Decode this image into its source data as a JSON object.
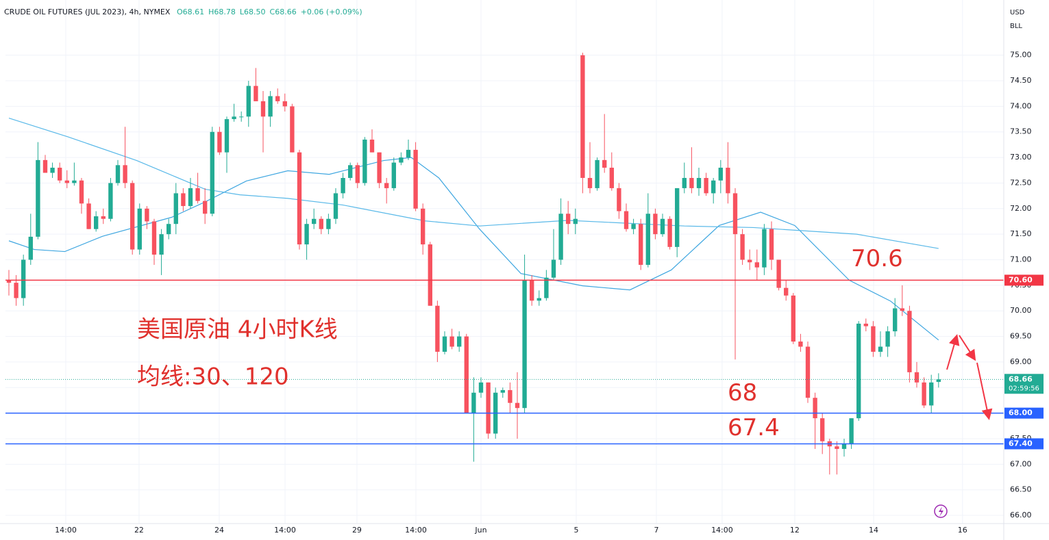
{
  "header": {
    "symbol": "CRUDE OIL FUTURES (JUL 2023), 4h, NYMEX",
    "ohlc": [
      "O68.61",
      "H68.78",
      "L68.50",
      "C68.66",
      "+0.06 (+0.09%)"
    ],
    "currency": "USD",
    "unit": "BLL"
  },
  "chart_data": {
    "type": "candlestick",
    "up_color": "#22ab94",
    "down_color": "#f7525f",
    "candles": [
      [
        70.6,
        70.8,
        70.3,
        70.55
      ],
      [
        70.55,
        70.7,
        70.1,
        70.25
      ],
      [
        70.25,
        71.1,
        70.1,
        71.0
      ],
      [
        71.0,
        71.9,
        70.9,
        71.45
      ],
      [
        71.45,
        73.3,
        71.4,
        72.95
      ],
      [
        72.95,
        73.05,
        72.7,
        72.7
      ],
      [
        72.7,
        72.9,
        72.6,
        72.8
      ],
      [
        72.8,
        72.9,
        72.5,
        72.55
      ],
      [
        72.55,
        72.75,
        72.4,
        72.5
      ],
      [
        72.5,
        72.9,
        72.45,
        72.55
      ],
      [
        72.55,
        72.6,
        71.9,
        72.1
      ],
      [
        72.1,
        72.2,
        71.6,
        71.6
      ],
      [
        71.6,
        71.95,
        71.55,
        71.85
      ],
      [
        71.85,
        72.0,
        71.7,
        71.8
      ],
      [
        71.8,
        72.6,
        71.75,
        72.5
      ],
      [
        72.5,
        72.95,
        72.45,
        72.85
      ],
      [
        72.85,
        73.6,
        72.4,
        72.5
      ],
      [
        72.5,
        72.55,
        71.1,
        71.2
      ],
      [
        71.2,
        72.1,
        71.1,
        72.0
      ],
      [
        72.0,
        72.05,
        71.6,
        71.75
      ],
      [
        71.75,
        71.8,
        70.9,
        71.1
      ],
      [
        71.1,
        71.6,
        70.7,
        71.5
      ],
      [
        71.5,
        71.8,
        71.4,
        71.7
      ],
      [
        71.7,
        72.5,
        71.5,
        72.3
      ],
      [
        72.3,
        72.4,
        71.95,
        72.05
      ],
      [
        72.05,
        72.6,
        72.0,
        72.4
      ],
      [
        72.4,
        72.7,
        72.1,
        72.15
      ],
      [
        72.15,
        72.4,
        71.7,
        71.9
      ],
      [
        71.9,
        73.6,
        71.85,
        73.5
      ],
      [
        73.5,
        73.6,
        73.05,
        73.1
      ],
      [
        73.1,
        73.8,
        72.7,
        73.75
      ],
      [
        73.75,
        74.05,
        73.7,
        73.8
      ],
      [
        73.8,
        73.9,
        73.7,
        73.8
      ],
      [
        73.8,
        74.5,
        73.6,
        74.4
      ],
      [
        74.4,
        74.75,
        74.1,
        74.1
      ],
      [
        74.1,
        74.3,
        73.1,
        73.8
      ],
      [
        73.8,
        74.3,
        73.6,
        74.2
      ],
      [
        74.2,
        74.35,
        74.05,
        74.1
      ],
      [
        74.1,
        74.25,
        73.9,
        74.0
      ],
      [
        74.0,
        74.05,
        73.1,
        73.1
      ],
      [
        73.1,
        73.15,
        71.2,
        71.3
      ],
      [
        71.3,
        71.8,
        71.0,
        71.7
      ],
      [
        71.7,
        72.0,
        71.6,
        71.8
      ],
      [
        71.8,
        71.85,
        71.5,
        71.6
      ],
      [
        71.6,
        71.9,
        71.5,
        71.8
      ],
      [
        71.8,
        72.4,
        71.7,
        72.3
      ],
      [
        72.3,
        72.7,
        72.2,
        72.6
      ],
      [
        72.6,
        72.9,
        72.55,
        72.85
      ],
      [
        72.85,
        72.9,
        72.4,
        72.5
      ],
      [
        72.5,
        73.4,
        72.45,
        73.35
      ],
      [
        73.35,
        73.55,
        73.1,
        73.1
      ],
      [
        73.1,
        73.1,
        72.4,
        72.5
      ],
      [
        72.5,
        72.6,
        72.1,
        72.4
      ],
      [
        72.4,
        73.0,
        72.35,
        72.9
      ],
      [
        72.9,
        73.1,
        72.85,
        73.0
      ],
      [
        73.0,
        73.35,
        72.95,
        73.15
      ],
      [
        73.15,
        73.3,
        71.95,
        72.0
      ],
      [
        72.0,
        72.1,
        71.1,
        71.3
      ],
      [
        71.3,
        71.35,
        70.1,
        70.1
      ],
      [
        70.1,
        70.2,
        69.0,
        69.2
      ],
      [
        69.2,
        69.6,
        69.15,
        69.5
      ],
      [
        69.5,
        69.65,
        69.25,
        69.3
      ],
      [
        69.3,
        69.6,
        69.2,
        69.5
      ],
      [
        69.5,
        69.55,
        68.0,
        68.0
      ],
      [
        68.0,
        68.7,
        67.05,
        68.4
      ],
      [
        68.4,
        68.7,
        68.3,
        68.6
      ],
      [
        68.6,
        68.6,
        67.5,
        67.6
      ],
      [
        67.6,
        68.5,
        67.5,
        68.4
      ],
      [
        68.4,
        68.5,
        68.3,
        68.45
      ],
      [
        68.45,
        68.6,
        68.0,
        68.2
      ],
      [
        68.2,
        68.8,
        67.5,
        68.1
      ],
      [
        68.1,
        71.1,
        68.0,
        70.6
      ],
      [
        70.6,
        70.7,
        70.1,
        70.2
      ],
      [
        70.2,
        70.4,
        70.1,
        70.25
      ],
      [
        70.25,
        70.8,
        70.2,
        70.65
      ],
      [
        70.65,
        71.6,
        70.6,
        71.0
      ],
      [
        71.0,
        72.2,
        70.9,
        71.9
      ],
      [
        71.9,
        72.15,
        71.5,
        71.7
      ],
      [
        71.7,
        72.0,
        71.5,
        71.8
      ],
      [
        75.0,
        75.05,
        72.3,
        72.6
      ],
      [
        72.6,
        73.3,
        72.3,
        72.4
      ],
      [
        72.4,
        73.0,
        72.35,
        72.95
      ],
      [
        72.95,
        73.85,
        72.7,
        72.8
      ],
      [
        72.8,
        73.1,
        72.35,
        72.4
      ],
      [
        72.4,
        72.5,
        71.8,
        71.95
      ],
      [
        71.95,
        72.1,
        71.55,
        71.6
      ],
      [
        71.6,
        71.8,
        71.5,
        71.7
      ],
      [
        71.7,
        71.8,
        70.8,
        70.9
      ],
      [
        70.9,
        72.3,
        70.85,
        71.9
      ],
      [
        71.9,
        72.0,
        71.4,
        71.5
      ],
      [
        71.5,
        71.9,
        71.45,
        71.8
      ],
      [
        71.8,
        71.85,
        71.2,
        71.25
      ],
      [
        71.25,
        72.4,
        71.05,
        72.4
      ],
      [
        72.4,
        72.9,
        72.3,
        72.6
      ],
      [
        72.6,
        73.2,
        72.3,
        72.4
      ],
      [
        72.4,
        72.8,
        72.25,
        72.6
      ],
      [
        72.6,
        72.7,
        72.25,
        72.3
      ],
      [
        72.3,
        72.6,
        72.1,
        72.55
      ],
      [
        72.55,
        72.95,
        72.3,
        72.8
      ],
      [
        72.8,
        73.3,
        72.1,
        72.3
      ],
      [
        72.3,
        72.4,
        69.05,
        71.5
      ],
      [
        71.5,
        71.6,
        70.9,
        71.0
      ],
      [
        71.0,
        71.2,
        70.8,
        70.95
      ],
      [
        70.95,
        71.2,
        70.6,
        70.85
      ],
      [
        70.85,
        71.7,
        70.7,
        71.6
      ],
      [
        71.6,
        71.75,
        70.8,
        71.0
      ],
      [
        71.0,
        71.0,
        70.4,
        70.45
      ],
      [
        70.45,
        70.6,
        70.2,
        70.3
      ],
      [
        70.3,
        70.35,
        69.35,
        69.4
      ],
      [
        69.4,
        69.55,
        69.2,
        69.3
      ],
      [
        69.3,
        69.4,
        68.2,
        68.3
      ],
      [
        68.3,
        68.4,
        67.3,
        67.9
      ],
      [
        67.9,
        68.0,
        67.2,
        67.45
      ],
      [
        67.45,
        67.5,
        66.8,
        67.35
      ],
      [
        67.35,
        67.45,
        66.8,
        67.3
      ],
      [
        67.3,
        67.5,
        67.15,
        67.4
      ],
      [
        67.4,
        67.9,
        67.3,
        67.9
      ],
      [
        67.9,
        69.8,
        67.85,
        69.75
      ],
      [
        69.75,
        69.85,
        69.6,
        69.7
      ],
      [
        69.7,
        69.8,
        69.1,
        69.2
      ],
      [
        69.2,
        69.6,
        69.1,
        69.3
      ],
      [
        69.3,
        69.7,
        69.1,
        69.6
      ],
      [
        69.6,
        70.25,
        69.5,
        70.05
      ],
      [
        70.05,
        70.5,
        69.9,
        70.0
      ],
      [
        70.0,
        70.1,
        68.6,
        68.8
      ],
      [
        68.8,
        69.0,
        68.5,
        68.6
      ],
      [
        68.6,
        68.7,
        68.1,
        68.15
      ],
      [
        68.15,
        68.75,
        68.0,
        68.6
      ],
      [
        68.61,
        68.78,
        68.5,
        68.66
      ]
    ],
    "series": [
      {
        "color": "#3ea6e0",
        "x": [
          0,
          3.5,
          7.7,
          12.9,
          22.4,
          27,
          32.7,
          38.4,
          44.1,
          51.6,
          55.4,
          59.2,
          64.8,
          70.5,
          79,
          85.5,
          91.2,
          97.8,
          103.5,
          108.2,
          115.7,
          121.4,
          128
        ],
        "values": [
          71.37,
          71.2,
          71.16,
          71.46,
          71.83,
          72.13,
          72.54,
          72.74,
          72.67,
          72.94,
          73.0,
          72.6,
          71.6,
          70.73,
          70.49,
          70.41,
          70.8,
          71.67,
          71.93,
          71.67,
          70.6,
          70.19,
          69.43
        ]
      },
      {
        "color": "#58b8e8",
        "x": [
          0,
          8.2,
          17.6,
          27,
          31.8,
          38.4,
          46,
          57.3,
          64.8,
          77,
          93,
          102.5,
          116.7,
          128
        ],
        "values": [
          73.77,
          73.4,
          72.94,
          72.38,
          72.27,
          72.2,
          72.07,
          71.76,
          71.66,
          71.77,
          71.66,
          71.63,
          71.5,
          71.22
        ]
      }
    ],
    "xlim": [
      -0.47,
      136.98
    ],
    "xticks": [
      {
        "value": 7.83,
        "label": "14:00"
      },
      {
        "value": 17.92,
        "label": "22"
      },
      {
        "value": 28.96,
        "label": "24"
      },
      {
        "value": 38.02,
        "label": "14:00"
      },
      {
        "value": 47.92,
        "label": "29"
      },
      {
        "value": 56.04,
        "label": "14:00"
      },
      {
        "value": 65.0,
        "label": "Jun"
      },
      {
        "value": 78.11,
        "label": "5"
      },
      {
        "value": 89.15,
        "label": "7"
      },
      {
        "value": 98.2,
        "label": "14:00"
      },
      {
        "value": 108.2,
        "label": "12"
      },
      {
        "value": 119.06,
        "label": "14"
      },
      {
        "value": 131.3,
        "label": "16"
      }
    ],
    "ylim": [
      65.84,
      76.08
    ],
    "yticks": [
      {
        "value": 66,
        "label": "66.00"
      },
      {
        "value": 66.5,
        "label": "66.50"
      },
      {
        "value": 67,
        "label": "67.00"
      },
      {
        "value": 67.5,
        "label": "67.50"
      },
      {
        "value": 68,
        "label": "68.00"
      },
      {
        "value": 68.5,
        "label": "68.50"
      },
      {
        "value": 69,
        "label": "69.00"
      },
      {
        "value": 69.5,
        "label": "69.50"
      },
      {
        "value": 70,
        "label": "70.00"
      },
      {
        "value": 70.5,
        "label": "70.50"
      },
      {
        "value": 71,
        "label": "71.00"
      },
      {
        "value": 71.5,
        "label": "71.50"
      },
      {
        "value": 72,
        "label": "72.00"
      },
      {
        "value": 72.5,
        "label": "72.50"
      },
      {
        "value": 73,
        "label": "73.00"
      },
      {
        "value": 73.5,
        "label": "73.50"
      },
      {
        "value": 74,
        "label": "74.00"
      },
      {
        "value": 74.5,
        "label": "74.50"
      },
      {
        "value": 75,
        "label": "75.00"
      }
    ],
    "grid": true,
    "hlines": [
      {
        "value": 70.6,
        "label": "70.60",
        "color": "#f23645"
      },
      {
        "value": 68,
        "label": "68.00",
        "color": "#2962ff"
      },
      {
        "value": 67.4,
        "label": "67.40",
        "color": "#2962ff"
      }
    ],
    "last_price": {
      "value": 68.66,
      "label": "68.66",
      "countdown": "02:59:56",
      "color": "#22ab94"
    },
    "annotations": [
      "70.6",
      "68",
      "67.4"
    ],
    "notes": [
      "美国原油 4小时K线",
      "均线:30、120"
    ]
  }
}
